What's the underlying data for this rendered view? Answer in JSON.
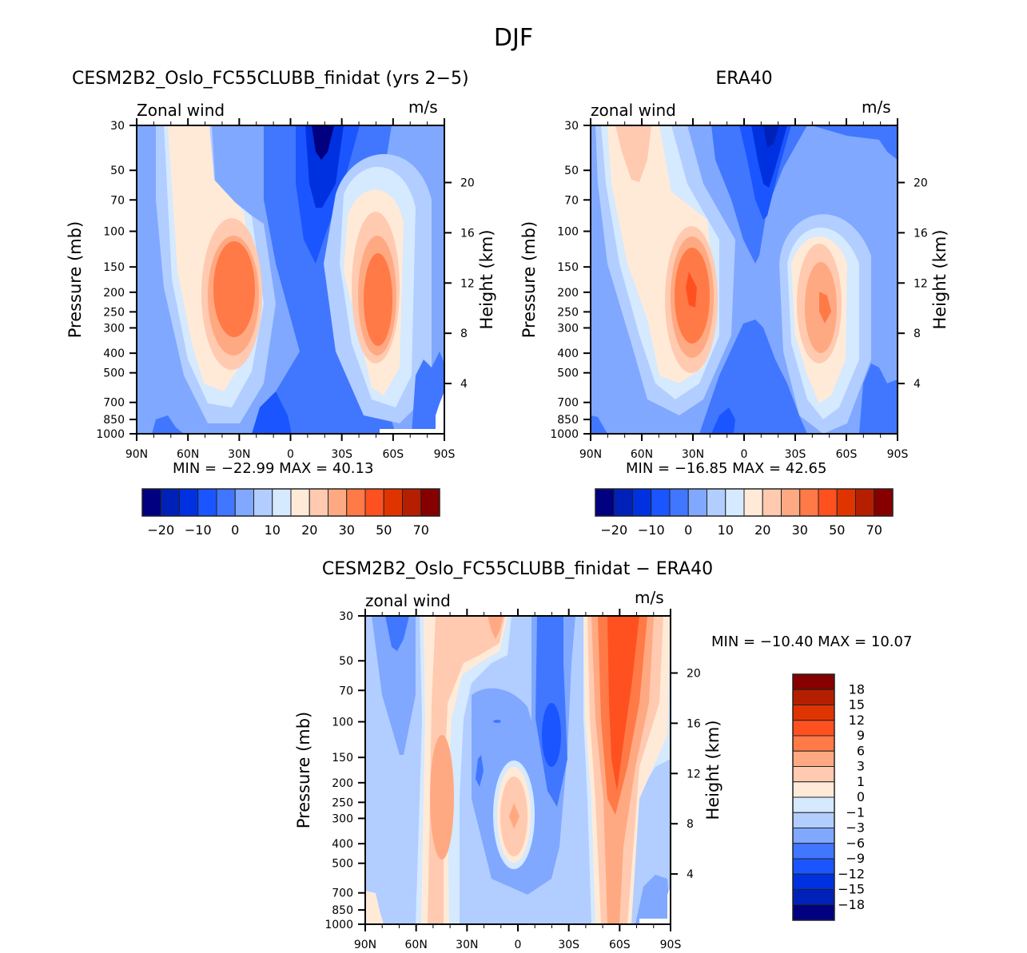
{
  "main_title": "DJF",
  "colors": {
    "top_levels": [
      "#000080",
      "#0021b8",
      "#0031e0",
      "#1b55ff",
      "#4177ff",
      "#80a8ff",
      "#b2cdff",
      "#d5e9ff",
      "#ffead8",
      "#ffcab0",
      "#ffa982",
      "#ff7a47",
      "#ff5120",
      "#e03400",
      "#b51f00",
      "#860000"
    ],
    "frame": "#000000"
  },
  "chart_data": [
    {
      "type": "heatmap",
      "title": "CESM2B2_Oslo_FC55CLUBB_finidat (yrs 2−5)",
      "left_string": "Zonal wind",
      "right_string": "m/s",
      "xlabel": "",
      "ylabel": "Pressure (mb)",
      "ylabel_right": "Height (km)",
      "x_ticks": [
        "90N",
        "60N",
        "30N",
        "0",
        "30S",
        "60S",
        "90S"
      ],
      "y_ticks": [
        "30",
        "50",
        "70",
        "100",
        "150",
        "200",
        "250",
        "300",
        "400",
        "500",
        "700",
        "850",
        "1000"
      ],
      "y_right_ticks": [
        "20",
        "16",
        "12",
        "8",
        "4"
      ],
      "min_max": "MIN = −22.99   MAX =  40.13",
      "min": -22.99,
      "max": 40.13,
      "colorbar_labels": [
        "−20",
        "−10",
        "0",
        "10",
        "20",
        "30",
        "50",
        "70"
      ],
      "features": [
        {
          "name": "NH subtropical jet",
          "lat": 30,
          "pressure": 200,
          "peak_range": "40-50"
        },
        {
          "name": "SH subtropical jet",
          "lat": -50,
          "pressure": 200,
          "peak_range": "40-50"
        },
        {
          "name": "Tropical easterly",
          "lat": -15,
          "pressure": 30,
          "value_range": "<-20"
        }
      ]
    },
    {
      "type": "heatmap",
      "title": "ERA40",
      "left_string": "zonal wind",
      "right_string": "m/s",
      "ylabel": "Pressure (mb)",
      "ylabel_right": "Height (km)",
      "x_ticks": [
        "90N",
        "60N",
        "30N",
        "0",
        "30S",
        "60S",
        "90S"
      ],
      "y_ticks": [
        "30",
        "50",
        "70",
        "100",
        "150",
        "200",
        "250",
        "300",
        "400",
        "500",
        "700",
        "850",
        "1000"
      ],
      "y_right_ticks": [
        "20",
        "16",
        "12",
        "8",
        "4"
      ],
      "min_max": "MIN = −16.85   MAX =  42.65",
      "min": -16.85,
      "max": 42.65,
      "colorbar_labels": [
        "−20",
        "−10",
        "0",
        "10",
        "20",
        "30",
        "50",
        "70"
      ],
      "features": [
        {
          "name": "NH subtropical jet",
          "lat": 30,
          "pressure": 200,
          "peak_range": "40-50"
        },
        {
          "name": "SH subtropical jet",
          "lat": -45,
          "pressure": 250,
          "peak_range": "40-50"
        }
      ]
    },
    {
      "type": "heatmap",
      "title": "CESM2B2_Oslo_FC55CLUBB_finidat − ERA40",
      "left_string": "zonal wind",
      "right_string": "m/s",
      "ylabel": "Pressure (mb)",
      "ylabel_right": "Height (km)",
      "x_ticks": [
        "90N",
        "60N",
        "30N",
        "0",
        "30S",
        "60S",
        "90S"
      ],
      "y_ticks": [
        "30",
        "50",
        "70",
        "100",
        "150",
        "200",
        "250",
        "300",
        "400",
        "500",
        "700",
        "850",
        "1000"
      ],
      "y_right_ticks": [
        "20",
        "16",
        "12",
        "8",
        "4"
      ],
      "min_max": "MIN = −10.40   MAX =  10.07",
      "min": -10.4,
      "max": 10.07,
      "colorbar_labels": [
        "18",
        "15",
        "12",
        "9",
        "6",
        "3",
        "1",
        "0",
        "−1",
        "−3",
        "−6",
        "−9",
        "−12",
        "−15",
        "−18"
      ],
      "features": [
        {
          "name": "SH positive bias",
          "lat": -60,
          "pressure": 100,
          "value_range": "9-12"
        },
        {
          "name": "Tropical negative bias",
          "lat": -15,
          "pressure": 100,
          "value_range": "-12 to -9"
        }
      ]
    }
  ]
}
